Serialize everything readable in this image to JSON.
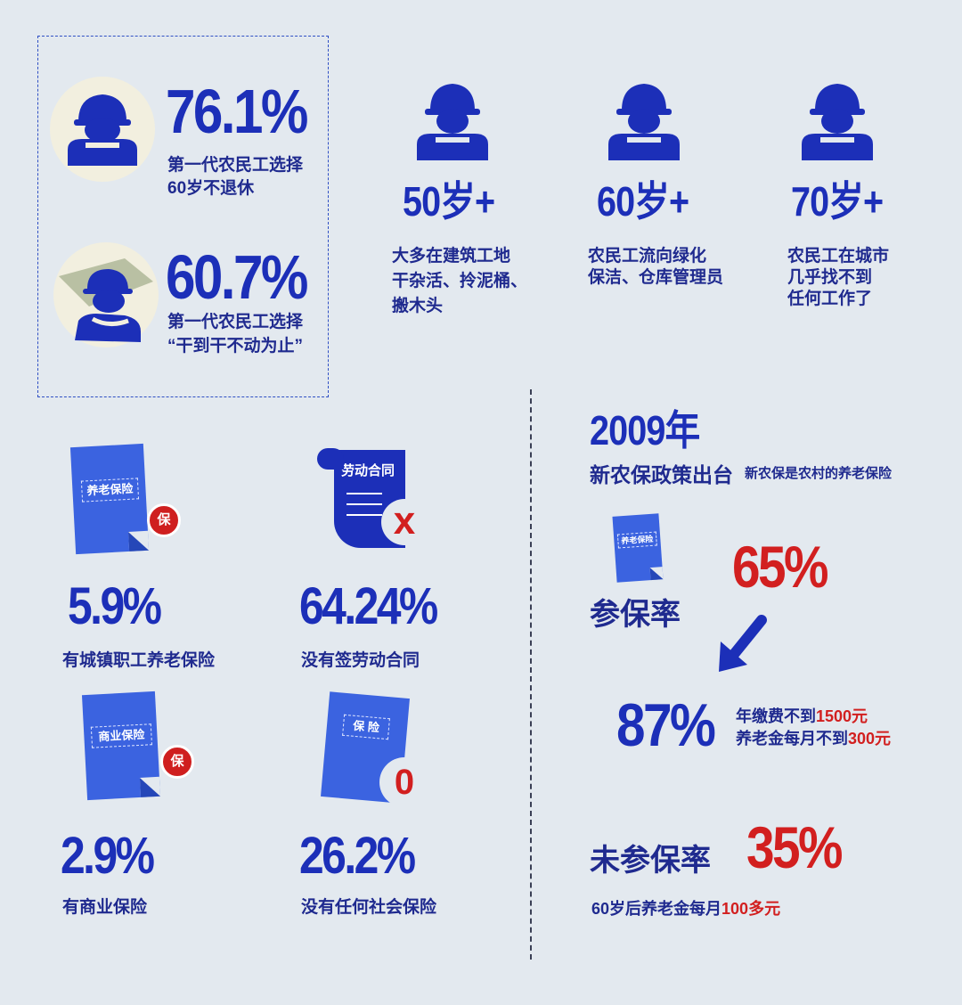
{
  "left_box": {
    "stat1": {
      "value": "76.1%",
      "caption_line1": "第一代农民工选择",
      "caption_line2": "60岁不退休"
    },
    "stat2": {
      "value": "60.7%",
      "caption_line1": "第一代农民工选择",
      "caption_line2": "“干到干不动为止”"
    }
  },
  "ages": [
    {
      "age": "50岁+",
      "desc_line1": "大多在建筑工地",
      "desc_line2": "干杂活、拎泥桶、",
      "desc_line3": "搬木头"
    },
    {
      "age": "60岁+",
      "desc_line1": "农民工流向绿化",
      "desc_line2": "保洁、仓库管理员",
      "desc_line3": ""
    },
    {
      "age": "70岁+",
      "desc_line1": "农民工在城市",
      "desc_line2": "几乎找不到",
      "desc_line3": "任何工作了"
    }
  ],
  "insurance": [
    {
      "doc_label": "养老保险",
      "badge": "保",
      "value": "5.9%",
      "caption": "有城镇职工养老保险"
    },
    {
      "doc_label": "劳动合同",
      "badge": "x",
      "value": "64.24%",
      "caption": "没有签劳动合同"
    },
    {
      "doc_label": "商业保险",
      "badge": "保",
      "value": "2.9%",
      "caption": "有商业保险"
    },
    {
      "doc_label": "保 险",
      "badge": "0",
      "value": "26.2%",
      "caption": "没有任何社会保险"
    }
  ],
  "policy": {
    "year": "2009年",
    "title": "新农保政策出台",
    "note": "新农保是农村的养老保险",
    "doc_label": "养老保险",
    "rate_label": "参保率",
    "rate_value": "65%",
    "sub_value": "87%",
    "sub_line1_prefix": "年缴费不到",
    "sub_line1_num": "1500元",
    "sub_line2_prefix": "养老金每月不到",
    "sub_line2_num": "300元",
    "unins_label": "未参保率",
    "unins_value": "35%",
    "pension_prefix": "60岁后养老金每月",
    "pension_num": "100多元"
  },
  "colors": {
    "accent_blue": "#1c2fb8",
    "accent_red": "#d21f1f",
    "doc_blue": "#3b63e0",
    "background": "#e3e9ef"
  }
}
